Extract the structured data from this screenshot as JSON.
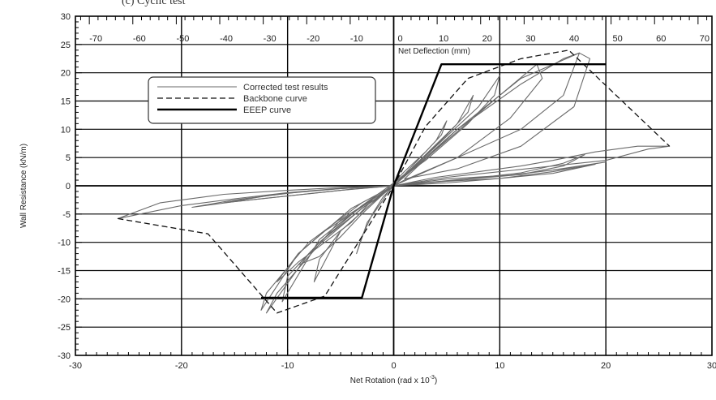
{
  "caption": "(c) Cyclic test",
  "chart_data": {
    "type": "line",
    "xlabel": "Net Rotation (rad x 10",
    "xlabel_sup": "-3",
    "xlabel_suffix": ")",
    "ylabel": "Wall Resistance (kN/m)",
    "top_axis_label": "Net Deflection (mm)",
    "xlim": [
      -30,
      30
    ],
    "ylim": [
      -30,
      30
    ],
    "x_ticks": [
      -30,
      -20,
      -10,
      0,
      10,
      20,
      30
    ],
    "y_ticks": [
      -30,
      -25,
      -20,
      -15,
      -10,
      -5,
      0,
      5,
      10,
      15,
      20,
      25,
      30
    ],
    "top_ticks": [
      -70,
      -60,
      -50,
      -40,
      -30,
      -20,
      -10,
      0,
      10,
      20,
      30,
      40,
      50,
      60,
      70
    ],
    "top_axis_mm_per_unit": 2.44,
    "grid": true,
    "legend_position": "upper-left",
    "legend": [
      {
        "label": "Corrected test results",
        "style": "thin"
      },
      {
        "label": "Backbone curve",
        "style": "dashed"
      },
      {
        "label": "EEEP curve",
        "style": "thick"
      }
    ],
    "series": [
      {
        "name": "EEEP curve",
        "x": [
          -12.5,
          -3,
          0,
          4.5,
          20
        ],
        "y": [
          -19.8,
          -19.8,
          0,
          21.5,
          21.5
        ]
      },
      {
        "name": "Backbone curve",
        "x": [
          -26,
          -17.5,
          -11,
          -6.5,
          -3,
          0,
          3,
          7,
          12,
          16.5,
          26
        ],
        "y": [
          -5.8,
          -8.5,
          -22.5,
          -19.5,
          -9,
          0,
          10.5,
          19,
          22.5,
          24,
          7
        ]
      },
      {
        "name": "Corrected test results",
        "loops": [
          {
            "x": [
              0,
              2,
              4,
              5,
              4.5,
              3,
              1,
              0,
              -1,
              -2.5,
              -3.5,
              -3,
              -2,
              -1,
              0
            ],
            "y": [
              0,
              4,
              8,
              11.5,
              9,
              6,
              2.5,
              0.5,
              -2.5,
              -6.5,
              -12,
              -9,
              -5,
              -2,
              0
            ]
          },
          {
            "x": [
              0,
              3,
              6,
              7.5,
              7,
              5,
              2,
              0,
              -2,
              -5,
              -7.5,
              -7,
              -5,
              -2,
              0
            ],
            "y": [
              0,
              5.5,
              11,
              16,
              13,
              9,
              3.5,
              0.5,
              -3,
              -8,
              -17,
              -13,
              -8,
              -3,
              0
            ]
          },
          {
            "x": [
              0,
              4,
              8,
              10,
              9.5,
              7,
              3,
              0,
              -3,
              -7,
              -10.5,
              -10,
              -7,
              -3,
              0
            ],
            "y": [
              0,
              7,
              14,
              19.5,
              16,
              11,
              4.5,
              0.5,
              -3.5,
              -9.5,
              -20.5,
              -16,
              -10,
              -3.5,
              0
            ]
          },
          {
            "x": [
              0,
              5,
              10,
              13.5,
              14,
              11,
              6,
              1,
              -3,
              -8,
              -12,
              -12.5,
              -9,
              -4,
              0
            ],
            "y": [
              0,
              8,
              16,
              21.5,
              19,
              12,
              5,
              1,
              -3,
              -10,
              -19,
              -22,
              -12,
              -4,
              0
            ]
          },
          {
            "x": [
              0,
              6,
              12,
              16,
              17.5,
              16,
              12,
              6,
              0,
              -5,
              -11,
              -12,
              -8,
              -3,
              0
            ],
            "y": [
              0,
              10,
              18,
              22.5,
              23.5,
              16,
              10,
              5,
              0,
              -6,
              -19,
              -22.5,
              -12,
              -4,
              0
            ]
          },
          {
            "x": [
              1,
              6,
              12,
              17.5,
              18.5,
              17,
              12,
              6,
              1
            ],
            "y": [
              1.2,
              10,
              19,
              23.5,
              22.5,
              14,
              7,
              3,
              1.2
            ]
          },
          {
            "x": [
              0,
              5,
              10,
              15,
              19,
              15,
              10,
              5,
              0
            ],
            "y": [
              0,
              0.8,
              1.3,
              2.2,
              3.8,
              2.5,
              1.3,
              0.5,
              0
            ]
          },
          {
            "x": [
              0,
              5,
              11,
              15,
              20,
              16,
              11,
              5,
              0
            ],
            "y": [
              0,
              1.2,
              1.9,
              2.8,
              4.2,
              3.0,
              1.9,
              0.9,
              0
            ]
          },
          {
            "x": [
              0,
              6,
              12,
              16,
              18,
              16,
              12,
              6,
              0
            ],
            "y": [
              0,
              1.0,
              2.0,
              3.5,
              5.5,
              4.0,
              2.3,
              1.0,
              0
            ]
          },
          {
            "x": [
              0,
              4,
              8,
              12,
              15,
              19,
              23,
              26,
              24,
              20,
              15,
              10,
              5,
              0
            ],
            "y": [
              0,
              1.5,
              2.5,
              3.5,
              4.5,
              6,
              7,
              7,
              6.5,
              4.5,
              3.5,
              2.5,
              1.5,
              0
            ]
          },
          {
            "x": [
              0,
              -5,
              -10,
              -15,
              -20,
              -26,
              -22,
              -16,
              -10,
              -5,
              0
            ],
            "y": [
              0,
              -0.5,
              -1.2,
              -2.3,
              -3.5,
              -5.8,
              -3.0,
              -1.5,
              -0.8,
              -0.3,
              0
            ]
          },
          {
            "x": [
              0,
              -5,
              -10,
              -15,
              -19,
              -15,
              -10,
              -5,
              0
            ],
            "y": [
              0,
              -0.8,
              -1.8,
              -2.8,
              -3.8,
              -2.5,
              -1.3,
              -0.5,
              0
            ]
          },
          {
            "x": [
              0,
              -4,
              -8,
              -12,
              -16,
              -12,
              -8,
              -4,
              0
            ],
            "y": [
              0,
              -0.6,
              -1.4,
              -2.2,
              -3.0,
              -1.8,
              -0.9,
              -0.3,
              0
            ]
          },
          {
            "x": [
              -1,
              -3,
              -5,
              -7,
              -9,
              -7,
              -5,
              -3,
              -1
            ],
            "y": [
              -1.5,
              -5,
              -9,
              -12.5,
              -14,
              -10,
              -7,
              -4,
              -1.5
            ]
          },
          {
            "x": [
              -2,
              -4,
              -6.5,
              -9,
              -11,
              -9,
              -6.5,
              -4,
              -2
            ],
            "y": [
              -2.5,
              -6.5,
              -10,
              -13.5,
              -17,
              -12,
              -8,
              -5,
              -2.5
            ]
          }
        ]
      }
    ]
  }
}
